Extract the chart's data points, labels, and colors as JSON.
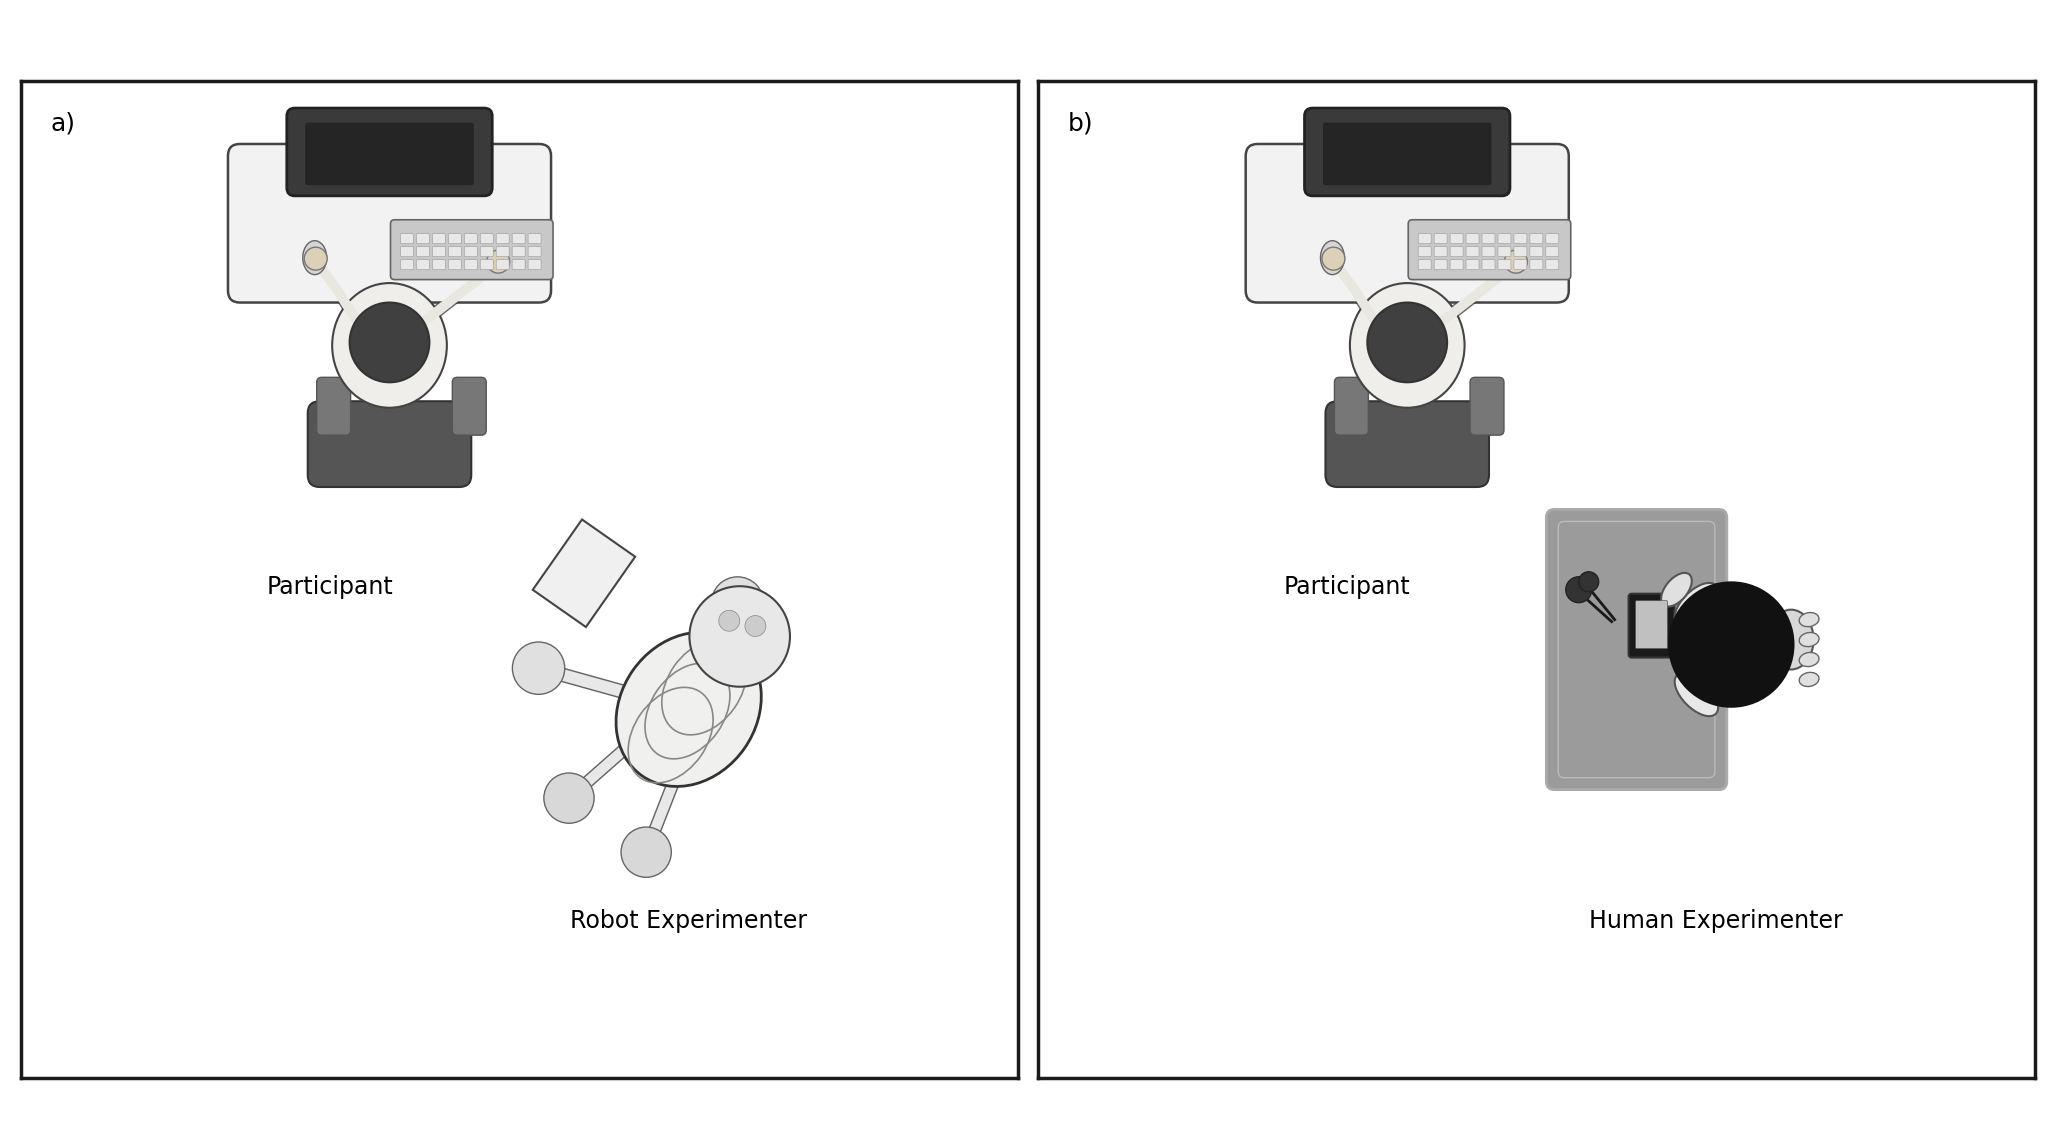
{
  "panel_a_label": "a)",
  "panel_b_label": "b)",
  "participant_label": "Participant",
  "robot_label": "Robot Experimenter",
  "human_label": "Human Experimenter",
  "bg_color": "#ffffff",
  "border_color": "#1a1a1a",
  "label_fontsize": 17,
  "panel_letter_fontsize": 18
}
